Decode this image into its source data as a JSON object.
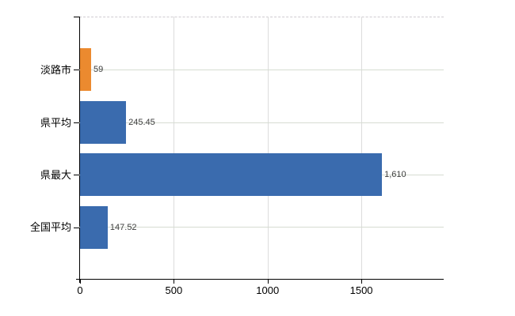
{
  "chart_data": {
    "type": "bar",
    "orientation": "horizontal",
    "title": "",
    "xlabel": "",
    "ylabel": "",
    "categories": [
      "淡路市",
      "県平均",
      "県最大",
      "全国平均"
    ],
    "values": [
      59,
      245.45,
      1610,
      147.52
    ],
    "value_labels": [
      "59",
      "245.45",
      "1,610",
      "147.52"
    ],
    "bar_colors": [
      "#eb8a2f",
      "#3a6bae",
      "#3a6bae",
      "#3a6bae"
    ],
    "xlim": [
      0,
      1939
    ],
    "x_ticks": [
      0,
      500,
      1000,
      1500
    ],
    "x_tick_labels": [
      "0",
      "500",
      "1000",
      "1500"
    ],
    "grid": "on",
    "legend": "none"
  },
  "colors": {
    "bar_blue": "#3a6bae",
    "bar_orange": "#eb8a2f",
    "vertical_gridline": "#dcdcdc",
    "horizontal_gridline": "#d6dcd2",
    "plot_border_dashed": "#cfcbd1",
    "axis": "#000000",
    "value_text": "#3e3e3e",
    "background": "#ffffff"
  }
}
